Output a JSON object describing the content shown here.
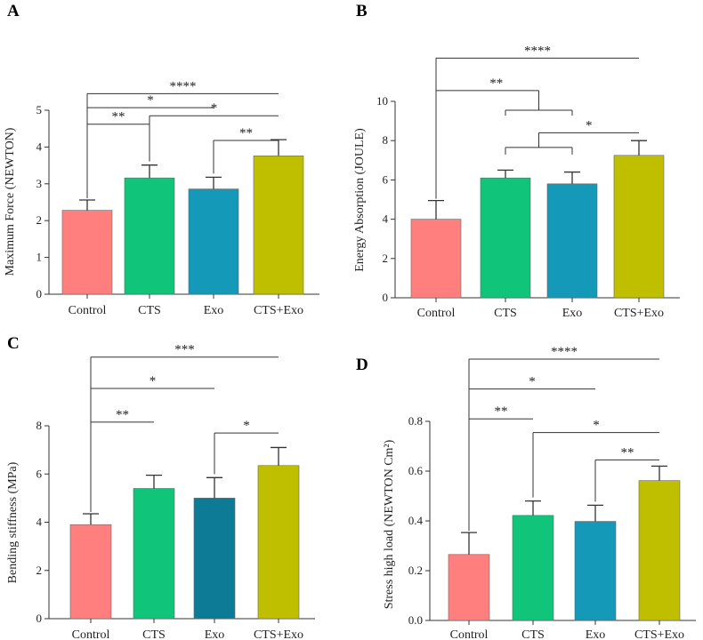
{
  "colors": {
    "control": "#ff7f7f",
    "cts": "#10c47a",
    "exo": "#1499b8",
    "exo_dark": "#0e7b96",
    "cts_exo": "#bfbf00"
  },
  "chart_data": [
    {
      "panel": "A",
      "type": "bar",
      "categories": [
        "Control",
        "CTS",
        "Exo",
        "CTS+Exo"
      ],
      "values": [
        2.28,
        3.16,
        2.86,
        3.76
      ],
      "errors": [
        0.28,
        0.35,
        0.32,
        0.44
      ],
      "ylabel": "Maximum Force (NEWTON)",
      "ylim": [
        0,
        5
      ],
      "yticks": [
        "0",
        "1",
        "2",
        "3",
        "4",
        "5"
      ],
      "bar_colors": [
        "control",
        "cts",
        "exo",
        "cts_exo"
      ],
      "brackets": [
        {
          "from": 0,
          "to": 3,
          "level": 5.45,
          "stars": "****",
          "type": "simple"
        },
        {
          "from": 0,
          "to": 2,
          "level": 5.07,
          "stars": "*",
          "type": "simple"
        },
        {
          "from": 0,
          "to": 1,
          "level": 4.62,
          "stars": "**",
          "type": "simple"
        },
        {
          "from": 1,
          "to": 3,
          "level": 4.85,
          "stars": "*",
          "type": "drop_left"
        },
        {
          "from": 2,
          "to": 3,
          "level": 4.18,
          "stars": "**",
          "type": "drop_left"
        }
      ]
    },
    {
      "panel": "B",
      "type": "bar",
      "categories": [
        "Control",
        "CTS",
        "Exo",
        "CTS+Exo"
      ],
      "values": [
        4.0,
        6.1,
        5.8,
        7.25
      ],
      "errors": [
        0.95,
        0.4,
        0.6,
        0.75
      ],
      "ylabel": "Energy Absorption (JOULE)",
      "ylim": [
        0,
        10
      ],
      "yticks": [
        "0",
        "2",
        "4",
        "6",
        "8",
        "10"
      ],
      "bar_colors": [
        "control",
        "cts",
        "exo",
        "cts_exo"
      ],
      "brackets": [
        {
          "from": 0,
          "to": 3,
          "level": 12.2,
          "stars": "****",
          "type": "simple"
        },
        {
          "from": 0,
          "to": 2,
          "level": 10.55,
          "stars": "**",
          "type": "group_right"
        },
        {
          "from": 1,
          "to": 3,
          "level": 8.4,
          "stars": "*",
          "type": "group_left"
        }
      ]
    },
    {
      "panel": "C",
      "type": "bar",
      "categories": [
        "Control",
        "CTS",
        "Exo",
        "CTS+Exo"
      ],
      "values": [
        3.9,
        5.4,
        5.0,
        6.35
      ],
      "errors": [
        0.45,
        0.55,
        0.85,
        0.75
      ],
      "ylabel": "Bending stiffness (MPa)",
      "ylim": [
        0,
        8
      ],
      "yticks": [
        "0",
        "2",
        "4",
        "6",
        "8"
      ],
      "bar_colors": [
        "control",
        "cts",
        "exo_dark",
        "cts_exo"
      ],
      "brackets": [
        {
          "from": 0,
          "to": 3,
          "level": 10.85,
          "stars": "***",
          "type": "simple"
        },
        {
          "from": 0,
          "to": 2,
          "level": 9.55,
          "stars": "*",
          "type": "simple"
        },
        {
          "from": 0,
          "to": 1,
          "level": 8.15,
          "stars": "**",
          "type": "simple"
        },
        {
          "from": 2,
          "to": 3,
          "level": 7.7,
          "stars": "*",
          "type": "drop_left"
        }
      ]
    },
    {
      "panel": "D",
      "type": "bar",
      "categories": [
        "Control",
        "CTS",
        "Exo",
        "CTS+Exo"
      ],
      "values": [
        0.265,
        0.422,
        0.398,
        0.562
      ],
      "errors": [
        0.088,
        0.058,
        0.065,
        0.058
      ],
      "ylabel": "Stress high load (NEWTON Cm²)",
      "ylim": [
        0,
        0.8
      ],
      "yticks": [
        "0.0",
        "0.2",
        "0.4",
        "0.6",
        "0.8"
      ],
      "bar_colors": [
        "control",
        "cts",
        "exo",
        "cts_exo"
      ],
      "brackets": [
        {
          "from": 0,
          "to": 3,
          "level": 1.05,
          "stars": "****",
          "type": "simple"
        },
        {
          "from": 0,
          "to": 2,
          "level": 0.93,
          "stars": "*",
          "type": "simple"
        },
        {
          "from": 0,
          "to": 1,
          "level": 0.81,
          "stars": "**",
          "type": "simple"
        },
        {
          "from": 1,
          "to": 3,
          "level": 0.755,
          "stars": "*",
          "type": "drop_left"
        },
        {
          "from": 2,
          "to": 3,
          "level": 0.645,
          "stars": "**",
          "type": "drop_left"
        }
      ]
    }
  ]
}
